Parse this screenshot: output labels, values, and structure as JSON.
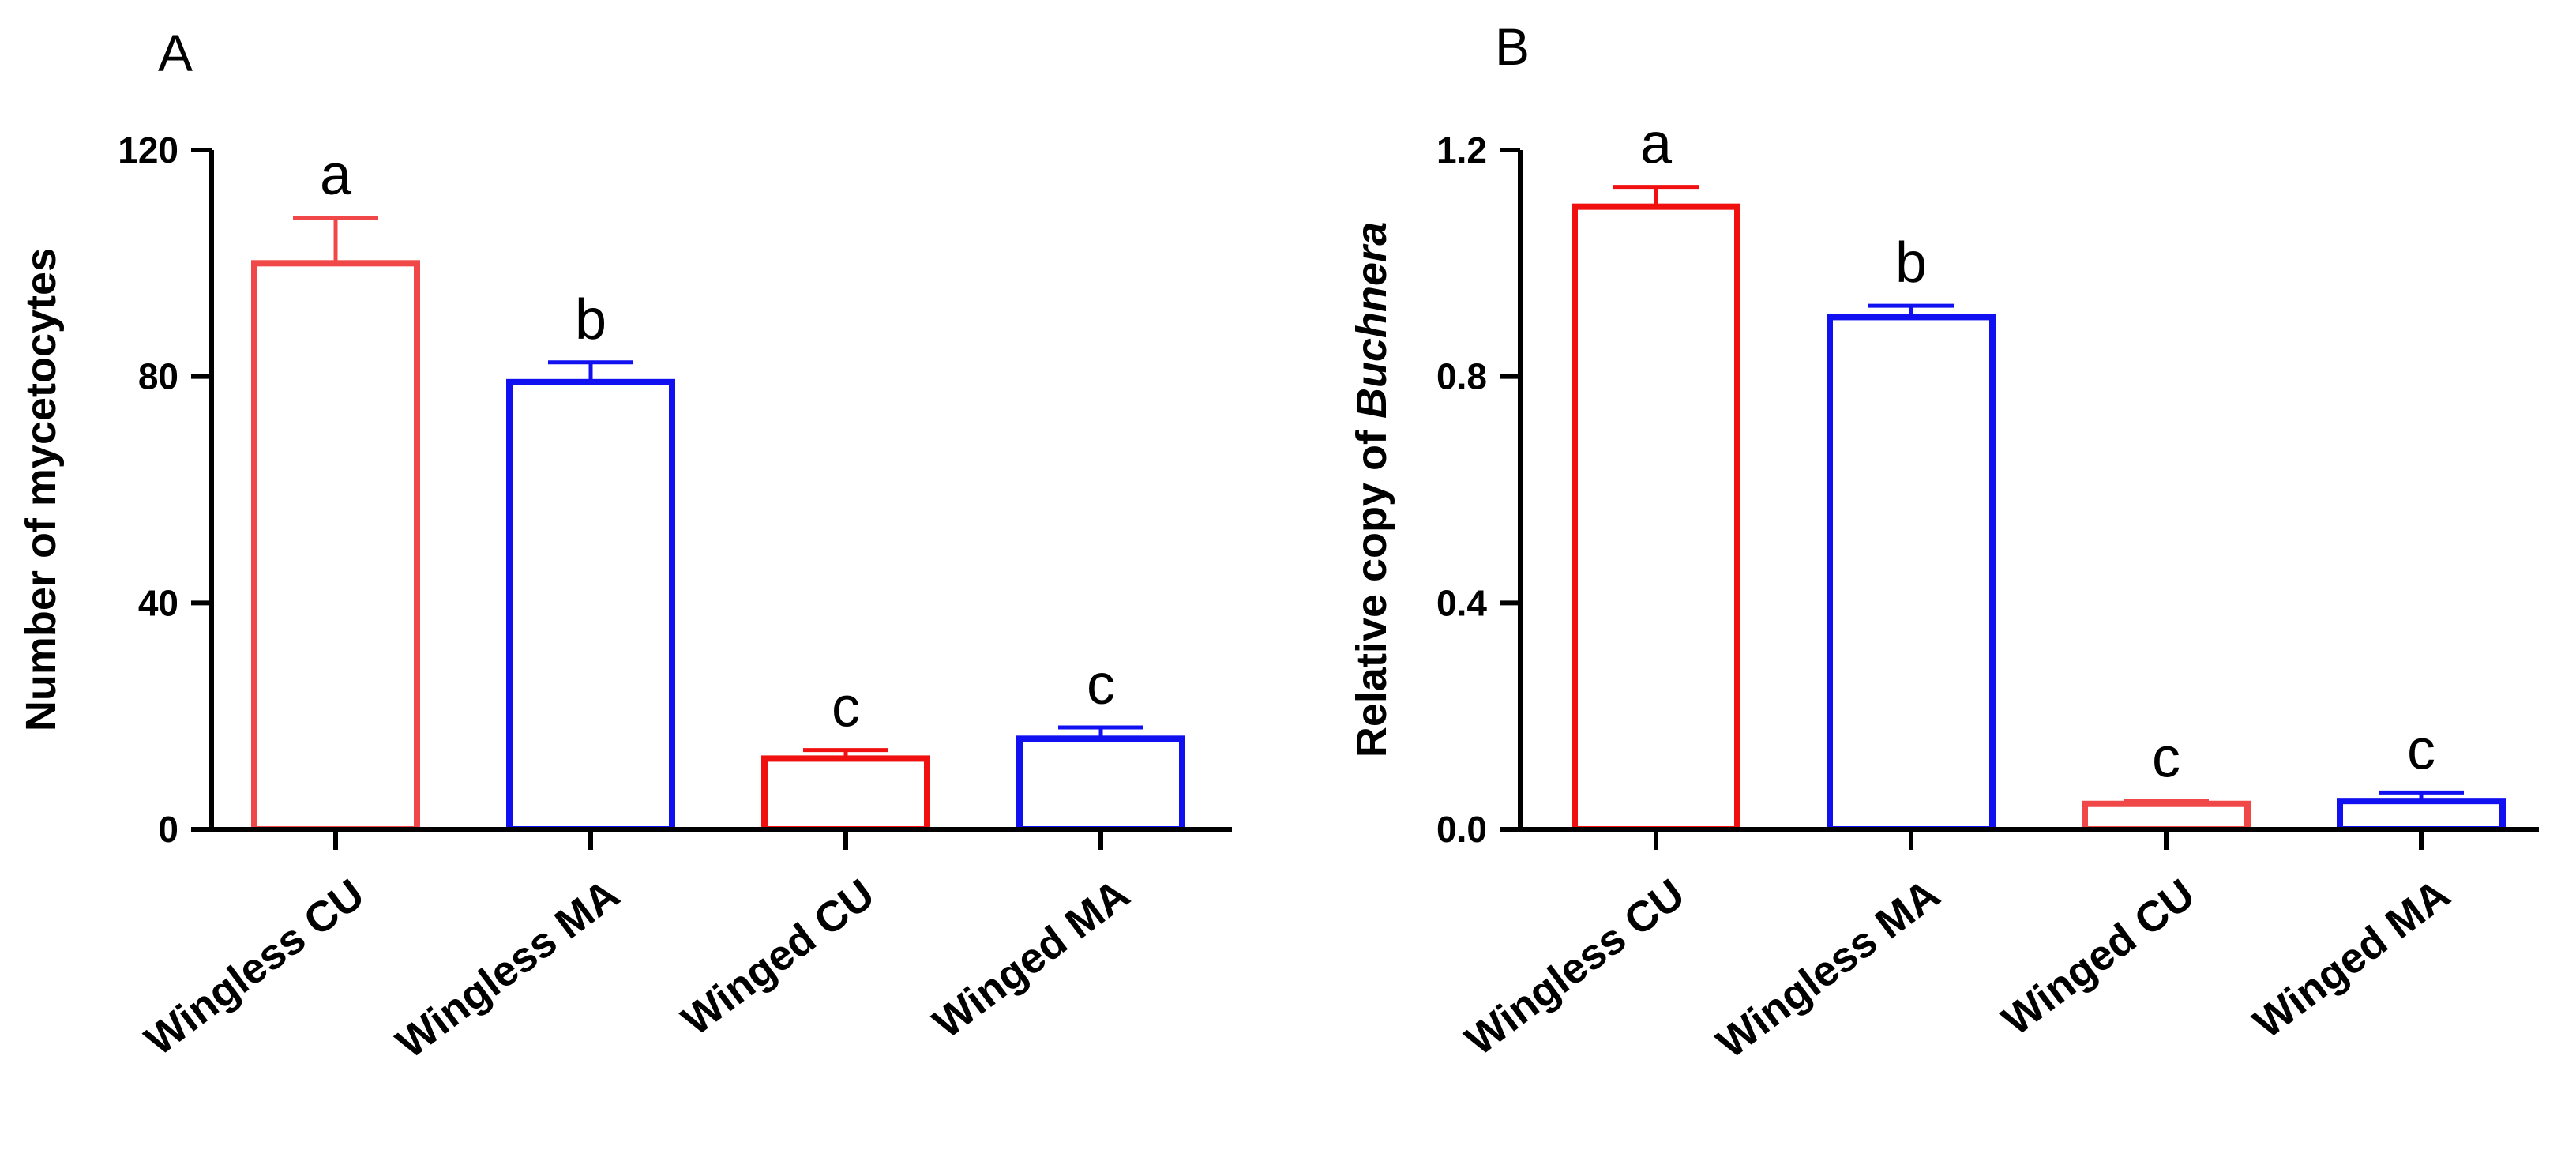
{
  "chart_data": [
    {
      "type": "bar",
      "panel": "A",
      "ylabel": "Number of mycetocytes",
      "ylabel_italic": "",
      "ylim": [
        0,
        120
      ],
      "yticks": [
        0,
        40,
        80,
        120
      ],
      "ytick_labels": [
        "0",
        "40",
        "80",
        "120"
      ],
      "categories": [
        "Wingless CU",
        "Wingless MA",
        "Winged CU",
        "Winged MA"
      ],
      "values": [
        100,
        79,
        12.5,
        16
      ],
      "errors": [
        8,
        3.5,
        1.5,
        2
      ],
      "significance": [
        "a",
        "b",
        "c",
        "c"
      ],
      "colors": [
        "#f04848",
        "#1010f0",
        "#f01010",
        "#1010f0"
      ],
      "grid": false
    },
    {
      "type": "bar",
      "panel": "B",
      "ylabel": "Relative copy of ",
      "ylabel_italic": "Buchnera",
      "ylim": [
        0,
        1.2
      ],
      "yticks": [
        0,
        0.4,
        0.8,
        1.2
      ],
      "ytick_labels": [
        "0.0",
        "0.4",
        "0.8",
        "1.2"
      ],
      "categories": [
        "Wingless CU",
        "Wingless MA",
        "Winged CU",
        "Winged MA"
      ],
      "values": [
        1.1,
        0.905,
        0.045,
        0.05
      ],
      "errors": [
        0.035,
        0.02,
        0.006,
        0.015
      ],
      "significance": [
        "a",
        "b",
        "c",
        "c"
      ],
      "colors": [
        "#f01010",
        "#1010f0",
        "#f04848",
        "#1010f0"
      ],
      "grid": false
    }
  ]
}
